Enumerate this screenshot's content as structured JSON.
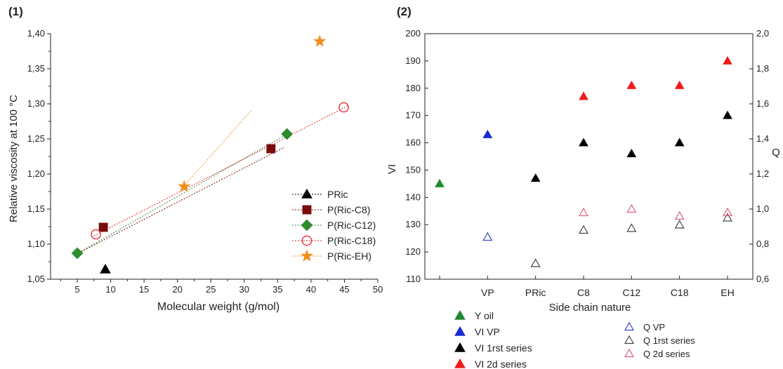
{
  "chart_data": [
    {
      "type": "scatter",
      "panel_label": "(1)",
      "xlabel": "Molecular weight (g/mol)",
      "ylabel": "Relative viscosity at 100 °C",
      "xlim": [
        1,
        50
      ],
      "ylim": [
        1.05,
        1.4
      ],
      "xticks": [
        "5",
        "10",
        "15",
        "20",
        "25",
        "30",
        "35",
        "40",
        "45",
        "50"
      ],
      "yticks": [
        "1,05",
        "1,10",
        "1,15",
        "1,20",
        "1,25",
        "1,30",
        "1,35",
        "1,40"
      ],
      "legend_position": "lower-right",
      "series": [
        {
          "name": "PRic",
          "marker": "triangle",
          "color": "#000000",
          "filled": true,
          "points": [
            [
              9.2,
              1.064
            ]
          ],
          "trend": null
        },
        {
          "name": "P(Ric-C8)",
          "marker": "square",
          "color": "#7a0c0c",
          "filled": true,
          "points": [
            [
              8.9,
              1.124
            ],
            [
              34.0,
              1.236
            ]
          ],
          "trend": [
            [
              4.5,
              1.084
            ],
            [
              36.0,
              1.238
            ]
          ]
        },
        {
          "name": "P(Ric-C12)",
          "marker": "diamond",
          "color": "#2e8b2e",
          "filled": true,
          "points": [
            [
              5.0,
              1.087
            ],
            [
              36.4,
              1.257
            ]
          ],
          "trend": [
            [
              4.5,
              1.084
            ],
            [
              37.0,
              1.26
            ]
          ]
        },
        {
          "name": "P(Ric-C18)",
          "marker": "circle",
          "color": "#e8202a",
          "filled": false,
          "points": [
            [
              7.8,
              1.114
            ],
            [
              44.9,
              1.295
            ]
          ],
          "trend": [
            [
              7.5,
              1.112
            ],
            [
              45.5,
              1.297
            ]
          ]
        },
        {
          "name": "P(Ric-EH)",
          "marker": "star",
          "color": "#f0901e",
          "filled": true,
          "points": [
            [
              21.0,
              1.182
            ],
            [
              41.3,
              1.389
            ]
          ],
          "trend": [
            [
              20.5,
              1.178
            ],
            [
              31.0,
              1.29
            ]
          ]
        }
      ]
    },
    {
      "type": "scatter",
      "panel_label": "(2)",
      "xlabel": "Side chain nature",
      "ylabel": "VI",
      "y2label": "Q",
      "categories": [
        "",
        "VP",
        "PRic",
        "C8",
        "C12",
        "C18",
        "EH"
      ],
      "ylim": [
        110,
        200
      ],
      "y2lim": [
        0.6,
        2.0
      ],
      "yticks": [
        "110",
        "120",
        "130",
        "140",
        "150",
        "160",
        "170",
        "180",
        "190",
        "200"
      ],
      "y2ticks": [
        "0,6",
        "0,8",
        "1,0",
        "1,2",
        "1,4",
        "1,6",
        "1,8",
        "2,0"
      ],
      "legend_position": "bottom",
      "series": [
        {
          "name": "Y oil",
          "axis": "left",
          "marker": "triangle",
          "color": "#1e8a2e",
          "filled": true,
          "points": [
            [
              0,
              145
            ]
          ]
        },
        {
          "name": "VI VP",
          "axis": "left",
          "marker": "triangle",
          "color": "#1a2bd6",
          "filled": true,
          "points": [
            [
              1,
              163
            ]
          ]
        },
        {
          "name": "VI 1rst series",
          "axis": "left",
          "marker": "triangle",
          "color": "#000000",
          "filled": true,
          "points": [
            [
              2,
              147
            ],
            [
              3,
              160
            ],
            [
              4,
              156
            ],
            [
              5,
              160
            ],
            [
              6,
              170
            ]
          ]
        },
        {
          "name": "VI 2d series",
          "axis": "left",
          "marker": "triangle",
          "color": "#ee1c1c",
          "filled": true,
          "points": [
            [
              3,
              177
            ],
            [
              4,
              181
            ],
            [
              5,
              181
            ],
            [
              6,
              190
            ]
          ]
        },
        {
          "name": "Q VP",
          "axis": "right",
          "marker": "triangle",
          "color": "#3a46c8",
          "filled": false,
          "points": [
            [
              1,
              0.84
            ]
          ]
        },
        {
          "name": "Q 1rst series",
          "axis": "right",
          "marker": "triangle",
          "color": "#444444",
          "filled": false,
          "points": [
            [
              2,
              0.69
            ],
            [
              3,
              0.88
            ],
            [
              4,
              0.89
            ],
            [
              5,
              0.91
            ],
            [
              6,
              0.95
            ]
          ]
        },
        {
          "name": "Q 2d series",
          "axis": "right",
          "marker": "triangle",
          "color": "#d8607a",
          "filled": false,
          "points": [
            [
              3,
              0.98
            ],
            [
              4,
              1.0
            ],
            [
              5,
              0.96
            ],
            [
              6,
              0.98
            ]
          ]
        }
      ]
    }
  ]
}
